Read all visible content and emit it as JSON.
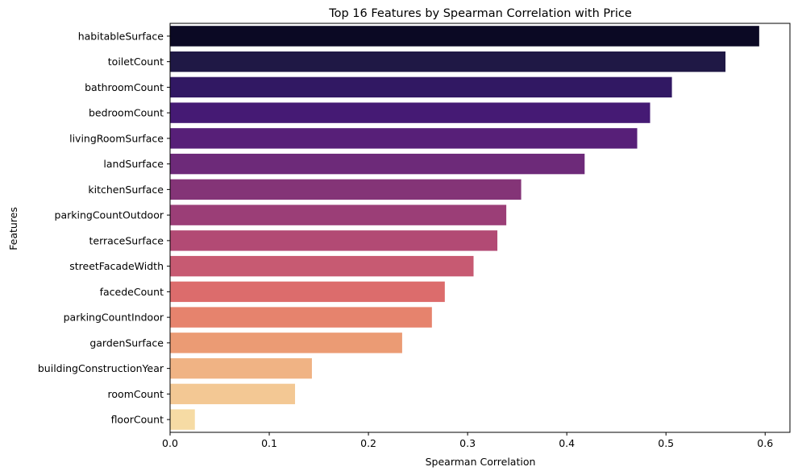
{
  "chart_data": {
    "type": "bar",
    "orientation": "horizontal",
    "title": "Top 16 Features by Spearman Correlation with Price",
    "xlabel": "Spearman Correlation",
    "ylabel": "Features",
    "xlim": [
      0,
      0.625
    ],
    "xticks": [
      0.0,
      0.1,
      0.2,
      0.3,
      0.4,
      0.5,
      0.6
    ],
    "xtick_labels": [
      "0.0",
      "0.1",
      "0.2",
      "0.3",
      "0.4",
      "0.5",
      "0.6"
    ],
    "grid": false,
    "palette": "magma",
    "categories": [
      "habitableSurface",
      "toiletCount",
      "bathroomCount",
      "bedroomCount",
      "livingRoomSurface",
      "landSurface",
      "kitchenSurface",
      "parkingCountOutdoor",
      "terraceSurface",
      "streetFacadeWidth",
      "facedeCount",
      "parkingCountIndoor",
      "gardenSurface",
      "buildingConstructionYear",
      "roomCount",
      "floorCount"
    ],
    "values": [
      0.594,
      0.56,
      0.506,
      0.484,
      0.471,
      0.418,
      0.354,
      0.339,
      0.33,
      0.306,
      0.277,
      0.264,
      0.234,
      0.143,
      0.126,
      0.025
    ],
    "colors": [
      "#0b0924",
      "#1f1845",
      "#311863",
      "#451a74",
      "#571f78",
      "#6d2a79",
      "#843477",
      "#9b3e77",
      "#b24a74",
      "#c75a72",
      "#dc6c6c",
      "#e6836d",
      "#eb9b74",
      "#f0b384",
      "#f3c894",
      "#f6dba4"
    ]
  }
}
